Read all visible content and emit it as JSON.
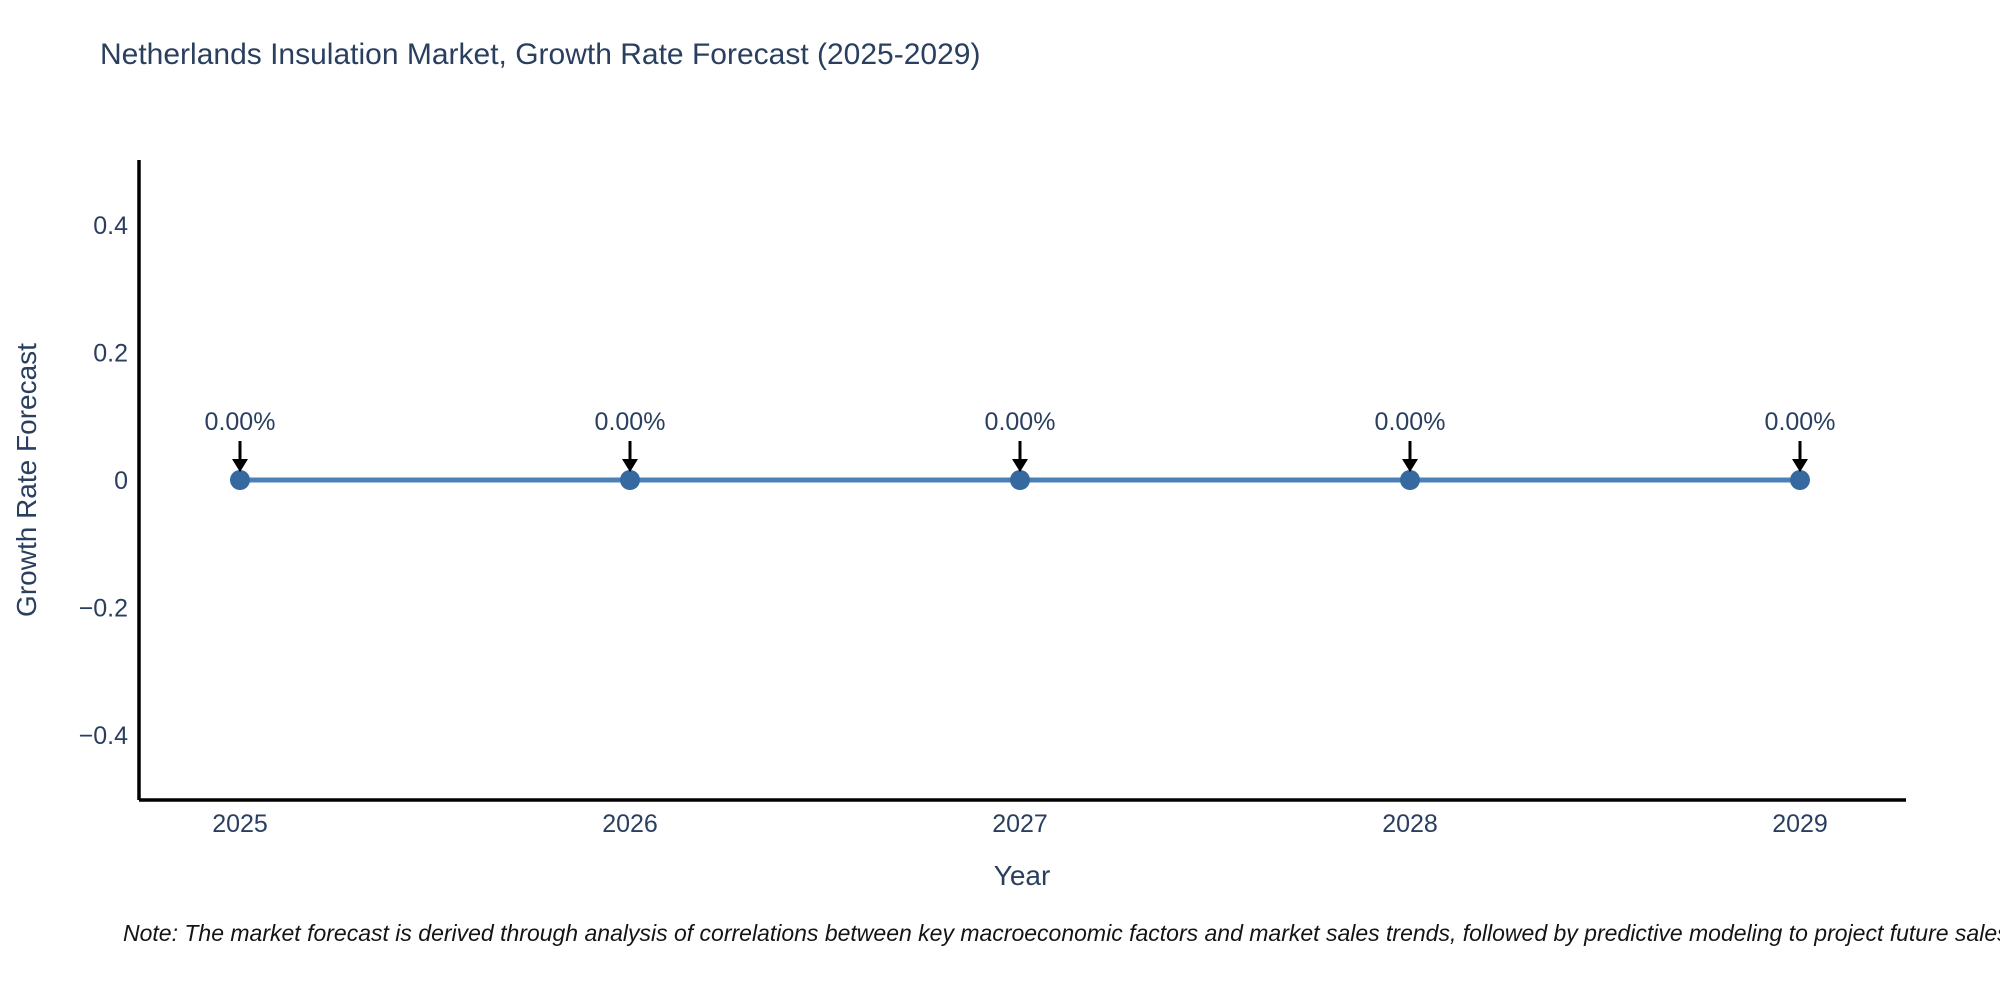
{
  "chart_data": {
    "type": "line",
    "title": "Netherlands Insulation Market, Growth Rate Forecast (2025-2029)",
    "xlabel": "Year",
    "ylabel": "Growth Rate Forecast",
    "categories": [
      "2025",
      "2026",
      "2027",
      "2028",
      "2029"
    ],
    "series": [
      {
        "name": "Growth Rate Forecast",
        "values": [
          0,
          0,
          0,
          0,
          0
        ]
      }
    ],
    "point_labels": [
      "0.00%",
      "0.00%",
      "0.00%",
      "0.00%",
      "0.00%"
    ],
    "ytick_values": [
      0.4,
      0.2,
      0,
      -0.2,
      -0.4
    ],
    "ytick_labels": [
      "0.4",
      "0.2",
      "0",
      "−0.2",
      "−0.4"
    ],
    "ylim": [
      -0.5,
      0.5
    ],
    "grid": false,
    "legend": "none",
    "annotation_style": "down-arrow",
    "colors": {
      "line": "#4a82b6",
      "marker": "#35699f",
      "arrow": "#000000",
      "axis": "#000000",
      "text": "#2a3f5f"
    }
  },
  "note": {
    "text": "Note: The market forecast is derived through analysis of correlations between key macroeconomic factors and market sales trends, followed by predictive modeling to project future sales"
  }
}
